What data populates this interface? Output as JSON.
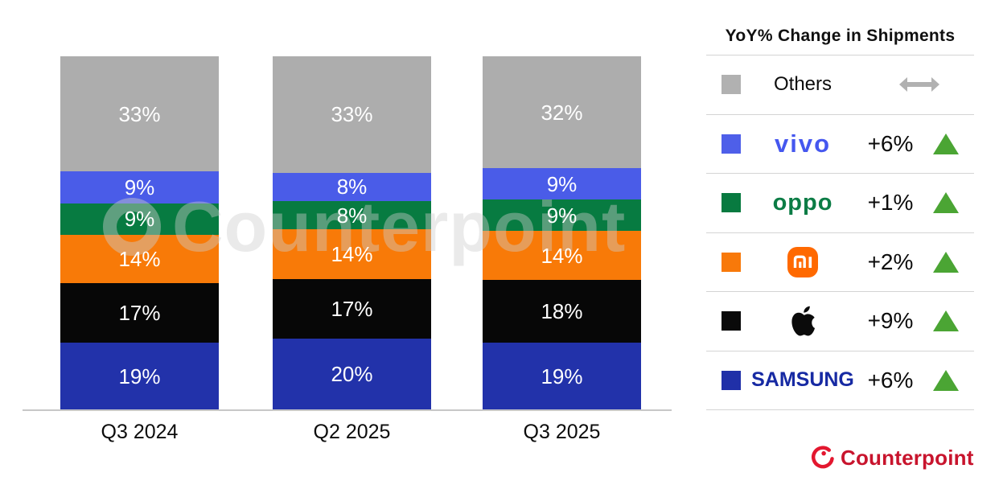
{
  "chart_data": {
    "type": "bar",
    "stacked": true,
    "title": "YoY% Change in Shipments",
    "categories": [
      "Q3 2024",
      "Q2 2025",
      "Q3 2025"
    ],
    "series": [
      {
        "name": "Others",
        "color": "#adadad",
        "values": [
          33,
          33,
          32
        ]
      },
      {
        "name": "vivo",
        "color": "#4a5ce8",
        "values": [
          9,
          8,
          9
        ]
      },
      {
        "name": "OPPO",
        "color": "#077b41",
        "values": [
          9,
          8,
          9
        ]
      },
      {
        "name": "Xiaomi",
        "color": "#f87a08",
        "values": [
          14,
          14,
          14
        ]
      },
      {
        "name": "Apple",
        "color": "#070707",
        "values": [
          17,
          17,
          18
        ]
      },
      {
        "name": "Samsung",
        "color": "#2232aa",
        "values": [
          19,
          20,
          19
        ]
      }
    ],
    "value_suffix": "%",
    "legend_position": "right",
    "grid": false
  },
  "legend": {
    "title": "YoY% Change in Shipments",
    "icons": {
      "up_triangle_color": "#4ba534",
      "flat_arrow_color": "#b1b1b1"
    },
    "rows": [
      {
        "key": "others",
        "label": "Others",
        "logo_text": "Others",
        "logo_color": "#0c0c0c",
        "swatch": "#b1b1b1",
        "change": "",
        "direction": "flat"
      },
      {
        "key": "vivo",
        "label": "vivo",
        "logo_text": "vivo",
        "logo_color": "#4557ef",
        "swatch": "#4e5fe9",
        "change": "+6%",
        "direction": "up"
      },
      {
        "key": "oppo",
        "label": "OPPO",
        "logo_text": "oppo",
        "logo_color": "#0b7c45",
        "swatch": "#087a40",
        "change": "+1%",
        "direction": "up"
      },
      {
        "key": "xiaomi",
        "label": "Xiaomi",
        "logo_text": "mi",
        "logo_color": "#ff6900",
        "swatch": "#f8790a",
        "change": "+2%",
        "direction": "up"
      },
      {
        "key": "apple",
        "label": "Apple",
        "logo_text": "",
        "logo_color": "#0b0b0b",
        "swatch": "#0a0a0a",
        "change": "+9%",
        "direction": "up"
      },
      {
        "key": "samsung",
        "label": "Samsung",
        "logo_text": "SAMSUNG",
        "logo_color": "#172aa3",
        "swatch": "#2030a8",
        "change": "+6%",
        "direction": "up"
      }
    ]
  },
  "watermark": {
    "text": "Counterpoint"
  },
  "footer": {
    "brand_label": "Counterpoint",
    "brand_color": "#e3172f"
  }
}
